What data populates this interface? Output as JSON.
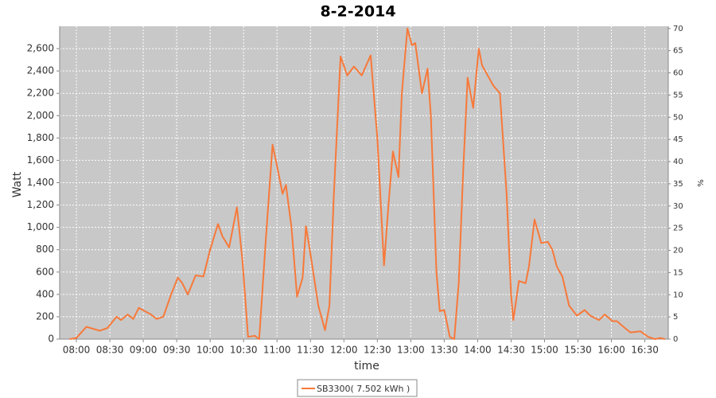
{
  "chart_data": {
    "type": "line",
    "title": "8-2-2014",
    "xlabel": "time",
    "ylabel": "Watt",
    "y2label": "%",
    "x": [
      "07:54",
      "08:00",
      "08:09",
      "08:21",
      "08:28",
      "08:36",
      "08:40",
      "08:46",
      "08:51",
      "08:56",
      "09:07",
      "09:12",
      "09:18",
      "09:25",
      "09:31",
      "09:35",
      "09:40",
      "09:47",
      "09:54",
      "10:00",
      "10:07",
      "10:11",
      "10:17",
      "10:24",
      "10:29",
      "10:34",
      "10:40",
      "10:44",
      "10:50",
      "10:56",
      "11:00",
      "11:05",
      "11:08",
      "11:13",
      "11:18",
      "11:23",
      "11:26",
      "11:31",
      "11:37",
      "11:43",
      "11:47",
      "11:51",
      "11:57",
      "12:03",
      "12:09",
      "12:16",
      "12:24",
      "12:30",
      "12:36",
      "12:40",
      "12:44",
      "12:49",
      "12:52",
      "12:57",
      "13:01",
      "13:04",
      "13:10",
      "13:15",
      "13:18",
      "13:23",
      "13:26",
      "13:30",
      "13:35",
      "13:39",
      "13:43",
      "13:47",
      "13:51",
      "13:56",
      "14:01",
      "14:04",
      "14:09",
      "14:14",
      "14:20",
      "14:26",
      "14:30",
      "14:32",
      "14:37",
      "14:43",
      "14:46",
      "14:51",
      "14:57",
      "15:03",
      "15:07",
      "15:11",
      "15:16",
      "15:22",
      "15:29",
      "15:36",
      "15:41",
      "15:49",
      "15:54",
      "16:01",
      "16:05",
      "16:12",
      "16:17",
      "16:26",
      "16:33",
      "16:39",
      "16:44",
      "16:48"
    ],
    "series": [
      {
        "name": "SB3300( 7.502 kWh )",
        "color": "#f7793a",
        "values": [
          0,
          10,
          110,
          75,
          100,
          200,
          170,
          220,
          180,
          280,
          220,
          180,
          200,
          400,
          550,
          500,
          400,
          570,
          560,
          800,
          1030,
          920,
          820,
          1180,
          700,
          20,
          30,
          0,
          900,
          1740,
          1550,
          1300,
          1380,
          1000,
          380,
          550,
          1010,
          700,
          300,
          80,
          300,
          1300,
          2530,
          2360,
          2440,
          2360,
          2540,
          1800,
          660,
          1200,
          1680,
          1450,
          2200,
          2780,
          2630,
          2650,
          2200,
          2420,
          2000,
          600,
          250,
          260,
          20,
          0,
          500,
          1500,
          2340,
          2070,
          2600,
          2450,
          2360,
          2270,
          2200,
          1300,
          400,
          170,
          520,
          500,
          650,
          1070,
          860,
          870,
          800,
          650,
          560,
          300,
          210,
          260,
          210,
          170,
          220,
          160,
          160,
          100,
          60,
          70,
          20,
          0,
          10,
          0
        ]
      }
    ],
    "xlim": [
      "07:45",
      "16:51"
    ],
    "xticks": [
      "08:00",
      "08:30",
      "09:00",
      "09:30",
      "10:00",
      "10:30",
      "11:00",
      "11:30",
      "12:00",
      "12:30",
      "13:00",
      "13:30",
      "14:00",
      "14:30",
      "15:00",
      "15:30",
      "16:00",
      "16:30"
    ],
    "ylim": [
      0,
      2800
    ],
    "yticks": [
      0,
      200,
      400,
      600,
      800,
      {
        "value": 1000,
        "label": "1,000"
      },
      {
        "value": 1200,
        "label": "1,200"
      },
      {
        "value": 1400,
        "label": "1,400"
      },
      {
        "value": 1600,
        "label": "1,600"
      },
      {
        "value": 1800,
        "label": "1,800"
      },
      {
        "value": 2000,
        "label": "2,000"
      },
      {
        "value": 2200,
        "label": "2,200"
      },
      {
        "value": 2400,
        "label": "2,400"
      },
      {
        "value": 2600,
        "label": "2,600"
      }
    ],
    "y2lim": [
      0,
      70.5
    ],
    "y2ticks": [
      0,
      5,
      10,
      15,
      20,
      25,
      30,
      35,
      40,
      45,
      50,
      55,
      60,
      65,
      70
    ],
    "grid": true
  }
}
